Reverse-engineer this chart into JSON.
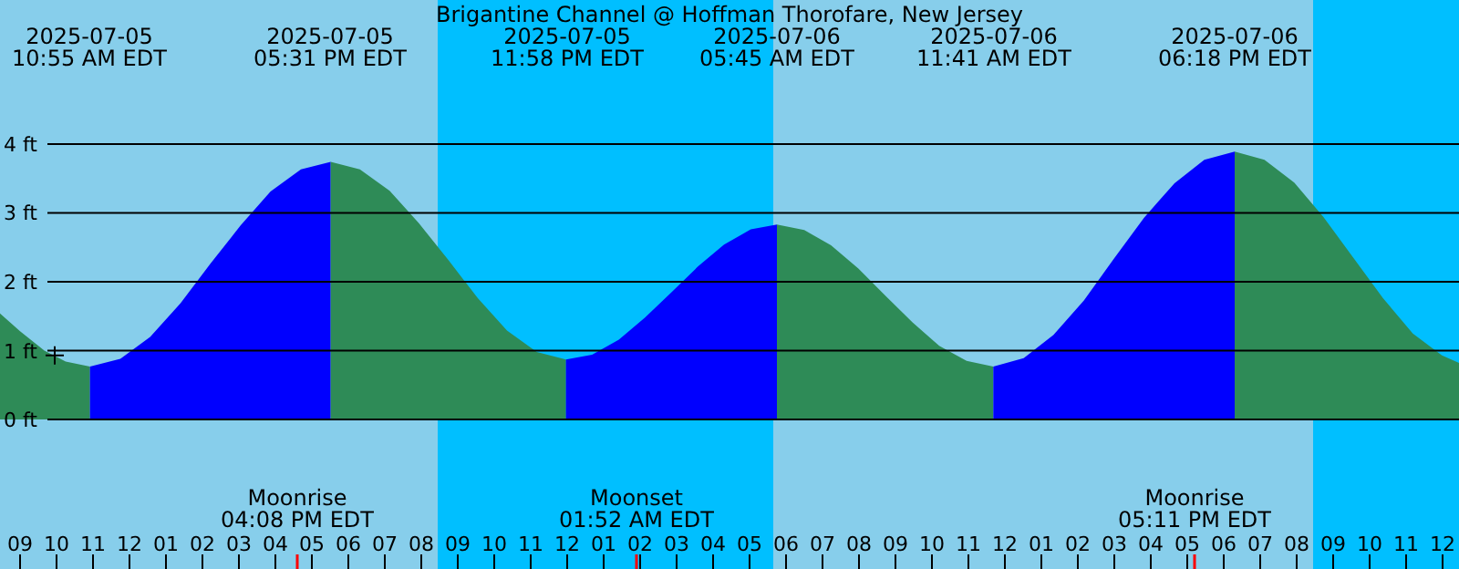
{
  "chart_data": {
    "type": "area",
    "title": "Brigantine Channel @ Hoffman Thorofare, New Jersey",
    "xlim": [
      "2025-07-05T08:27",
      "2025-07-07T00:27"
    ],
    "xticks": [
      {
        "value": "2025-07-05T09:00",
        "label": "09"
      },
      {
        "value": "2025-07-05T10:00",
        "label": "10"
      },
      {
        "value": "2025-07-05T11:00",
        "label": "11"
      },
      {
        "value": "2025-07-05T12:00",
        "label": "12"
      },
      {
        "value": "2025-07-05T13:00",
        "label": "01"
      },
      {
        "value": "2025-07-05T14:00",
        "label": "02"
      },
      {
        "value": "2025-07-05T15:00",
        "label": "03"
      },
      {
        "value": "2025-07-05T16:00",
        "label": "04"
      },
      {
        "value": "2025-07-05T17:00",
        "label": "05"
      },
      {
        "value": "2025-07-05T18:00",
        "label": "06"
      },
      {
        "value": "2025-07-05T19:00",
        "label": "07"
      },
      {
        "value": "2025-07-05T20:00",
        "label": "08"
      },
      {
        "value": "2025-07-05T21:00",
        "label": "09"
      },
      {
        "value": "2025-07-05T22:00",
        "label": "10"
      },
      {
        "value": "2025-07-05T23:00",
        "label": "11"
      },
      {
        "value": "2025-07-06T00:00",
        "label": "12"
      },
      {
        "value": "2025-07-06T01:00",
        "label": "01"
      },
      {
        "value": "2025-07-06T02:00",
        "label": "02"
      },
      {
        "value": "2025-07-06T03:00",
        "label": "03"
      },
      {
        "value": "2025-07-06T04:00",
        "label": "04"
      },
      {
        "value": "2025-07-06T05:00",
        "label": "05"
      },
      {
        "value": "2025-07-06T06:00",
        "label": "06"
      },
      {
        "value": "2025-07-06T07:00",
        "label": "07"
      },
      {
        "value": "2025-07-06T08:00",
        "label": "08"
      },
      {
        "value": "2025-07-06T09:00",
        "label": "09"
      },
      {
        "value": "2025-07-06T10:00",
        "label": "10"
      },
      {
        "value": "2025-07-06T11:00",
        "label": "11"
      },
      {
        "value": "2025-07-06T12:00",
        "label": "12"
      },
      {
        "value": "2025-07-06T13:00",
        "label": "01"
      },
      {
        "value": "2025-07-06T14:00",
        "label": "02"
      },
      {
        "value": "2025-07-06T15:00",
        "label": "03"
      },
      {
        "value": "2025-07-06T16:00",
        "label": "04"
      },
      {
        "value": "2025-07-06T17:00",
        "label": "05"
      },
      {
        "value": "2025-07-06T18:00",
        "label": "06"
      },
      {
        "value": "2025-07-06T19:00",
        "label": "07"
      },
      {
        "value": "2025-07-06T20:00",
        "label": "08"
      },
      {
        "value": "2025-07-06T21:00",
        "label": "09"
      },
      {
        "value": "2025-07-06T22:00",
        "label": "10"
      },
      {
        "value": "2025-07-06T23:00",
        "label": "11"
      },
      {
        "value": "2025-07-07T00:00",
        "label": "12"
      }
    ],
    "ylim": [
      -2.17,
      6.09
    ],
    "yticks": [
      {
        "value": 0,
        "label": "0 ft"
      },
      {
        "value": 1,
        "label": "1 ft"
      },
      {
        "value": 2,
        "label": "2 ft"
      },
      {
        "value": 3,
        "label": "3 ft"
      },
      {
        "value": 4,
        "label": "4 ft"
      }
    ],
    "grid": "y",
    "bands": [
      {
        "axis": "x",
        "from": "2025-07-05T20:27",
        "to": "2025-07-06T05:39",
        "color": "#00bfff"
      },
      {
        "axis": "x",
        "from": "2025-07-06T20:27",
        "to": "2025-07-07T00:27",
        "color": "#00bfff"
      }
    ],
    "series": [
      {
        "color": "#2e8b57",
        "x": [
          "2025-07-05T08:27",
          "2025-07-05T09:00",
          "2025-07-05T09:40",
          "2025-07-05T10:15",
          "2025-07-05T10:55"
        ],
        "values": [
          1.54,
          1.28,
          1.0,
          0.84,
          0.77
        ]
      },
      {
        "color": "#0000ff",
        "x": [
          "2025-07-05T10:55",
          "2025-07-05T11:45",
          "2025-07-05T12:34",
          "2025-07-05T13:24",
          "2025-07-05T14:13",
          "2025-07-05T15:03",
          "2025-07-05T15:52",
          "2025-07-05T16:42",
          "2025-07-05T17:31"
        ],
        "values": [
          0.77,
          0.88,
          1.2,
          1.69,
          2.26,
          2.82,
          3.31,
          3.63,
          3.74
        ]
      },
      {
        "color": "#2e8b57",
        "x": [
          "2025-07-05T17:31",
          "2025-07-05T18:19",
          "2025-07-05T19:08",
          "2025-07-05T19:56",
          "2025-07-05T20:45",
          "2025-07-05T21:33",
          "2025-07-05T22:21",
          "2025-07-05T23:10",
          "2025-07-05T23:58"
        ],
        "values": [
          3.74,
          3.63,
          3.32,
          2.85,
          2.31,
          1.76,
          1.29,
          0.98,
          0.87
        ]
      },
      {
        "color": "#0000ff",
        "x": [
          "2025-07-05T23:58",
          "2025-07-06T00:41",
          "2025-07-06T01:25",
          "2025-07-06T02:08",
          "2025-07-06T02:52",
          "2025-07-06T03:35",
          "2025-07-06T04:18",
          "2025-07-06T05:02",
          "2025-07-06T05:45"
        ],
        "values": [
          0.87,
          0.94,
          1.16,
          1.48,
          1.85,
          2.22,
          2.54,
          2.76,
          2.83
        ]
      },
      {
        "color": "#2e8b57",
        "x": [
          "2025-07-06T05:45",
          "2025-07-06T06:30",
          "2025-07-06T07:14",
          "2025-07-06T07:59",
          "2025-07-06T08:43",
          "2025-07-06T09:28",
          "2025-07-06T10:12",
          "2025-07-06T10:57",
          "2025-07-06T11:41"
        ],
        "values": [
          2.83,
          2.75,
          2.53,
          2.19,
          1.8,
          1.41,
          1.07,
          0.85,
          0.77
        ]
      },
      {
        "color": "#0000ff",
        "x": [
          "2025-07-06T11:41",
          "2025-07-06T12:31",
          "2025-07-06T13:20",
          "2025-07-06T14:10",
          "2025-07-06T14:59",
          "2025-07-06T15:49",
          "2025-07-06T16:39",
          "2025-07-06T17:28",
          "2025-07-06T18:18"
        ],
        "values": [
          0.77,
          0.89,
          1.23,
          1.73,
          2.33,
          2.93,
          3.43,
          3.77,
          3.89
        ]
      },
      {
        "color": "#2e8b57",
        "x": [
          "2025-07-06T18:18",
          "2025-07-06T19:07",
          "2025-07-06T19:56",
          "2025-07-06T20:44",
          "2025-07-06T21:33",
          "2025-07-06T22:22",
          "2025-07-06T23:11",
          "2025-07-06T23:59",
          "2025-07-07T00:27"
        ],
        "values": [
          3.89,
          3.77,
          3.44,
          2.94,
          2.35,
          1.76,
          1.25,
          0.93,
          0.82
        ]
      },
      {
        "type": "scatter",
        "marker": "cross",
        "color": "#000000",
        "x": [
          "2025-07-05T09:57"
        ],
        "values": [
          0.93
        ]
      }
    ],
    "annotations": [
      "2025-07-05\n10:55 AM EDT",
      "2025-07-05\n05:31 PM EDT",
      "2025-07-05\n11:58 PM EDT",
      "2025-07-06\n05:45 AM EDT",
      "2025-07-06\n11:41 AM EDT",
      "2025-07-06\n06:18 PM EDT",
      "Moonrise\n04:08 PM EDT",
      "Moonset\n01:52 AM EDT",
      "Moonrise\n05:11 PM EDT"
    ]
  }
}
